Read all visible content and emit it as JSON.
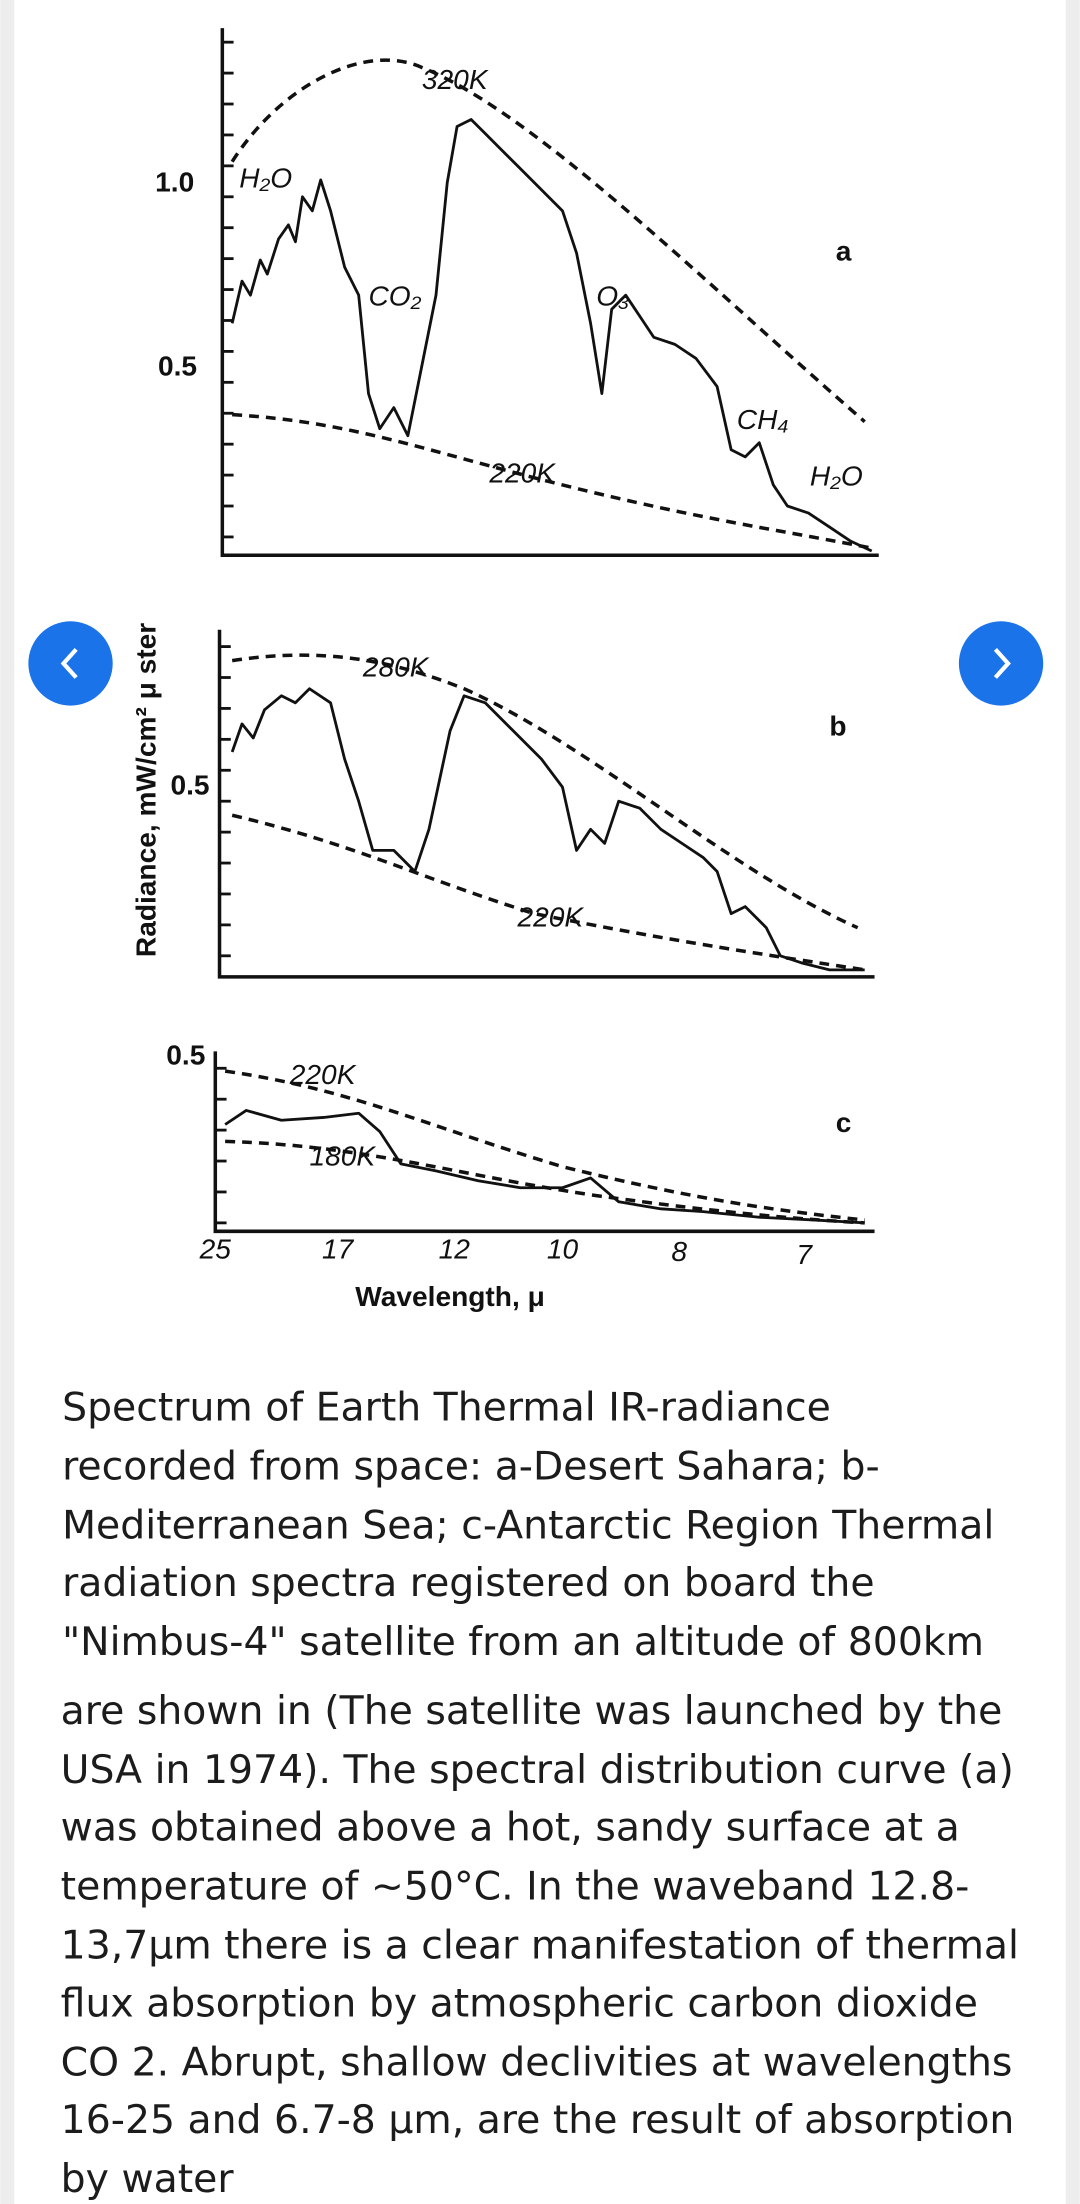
{
  "figure": {
    "y_axis_label": "Radiance, mW/cm² μ ster",
    "x_axis": {
      "ticks": [
        "25",
        "17",
        "12",
        "10",
        "8",
        "7"
      ],
      "label": "Wavelength, μ"
    },
    "panel_a": {
      "y_ticks": [
        "1.0",
        "0.5"
      ],
      "letter": "a",
      "labels": [
        "H₂O",
        "320K",
        "CO₂",
        "O₃",
        "CH₄",
        "220K",
        "H₂O"
      ]
    },
    "panel_b": {
      "y_ticks": [
        "0.5"
      ],
      "letter": "b",
      "labels": [
        "280K",
        "220K"
      ]
    },
    "panel_c": {
      "y_ticks": [
        "0.5"
      ],
      "letter": "c",
      "labels": [
        "220K",
        "180K"
      ]
    }
  },
  "caption": {
    "lines": [
      "Spectrum of Earth Thermal IR-radiance",
      "recorded from space: a-Desert Sahara; b-",
      "Mediterranean Sea; c-Antarctic Region Thermal",
      "radiation spectra registered on board the",
      "\"Nimbus-4\" satellite from an altitude of 800km",
      "are shown in (The satellite was launched by the",
      "USA in 1974). The spectral distribution curve (a)",
      "was obtained above a hot, sandy surface at a",
      "temperature of ~50°C. In the waveband 12.8-",
      "13,7μm there is a clear manifestation of thermal",
      "flux absorption by atmospheric carbon dioxide",
      "CO 2. Abrupt, shallow declivities at wavelengths",
      "16-25 and 6.7-8 μm, are the result of absorption",
      "by water"
    ]
  }
}
